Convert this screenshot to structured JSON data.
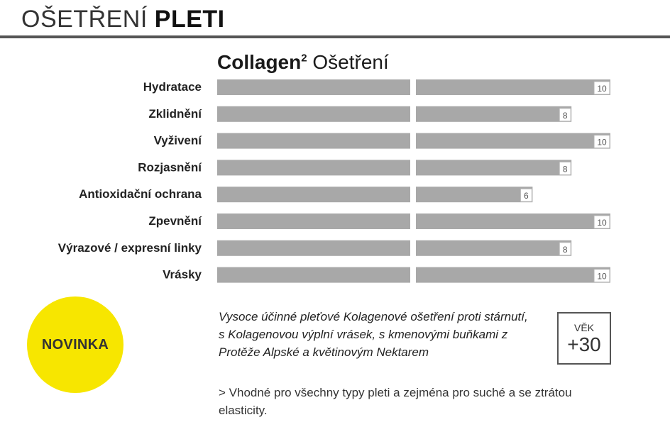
{
  "header": {
    "title_light": "OŠETŘENÍ",
    "title_bold": "PLETI"
  },
  "chart_data": {
    "type": "bar",
    "title_bold": "Collagen",
    "title_sup": "2",
    "title_rest": "Ošetření",
    "categories": [
      "Hydratace",
      "Zklidnění",
      "Vyživení",
      "Rozjasnění",
      "Antioxidační ochrana",
      "Zpevnění",
      "Výrazové / expresní linky",
      "Vrásky"
    ],
    "values": [
      10,
      8,
      10,
      8,
      6,
      10,
      8,
      10
    ],
    "xlim": [
      0,
      10
    ],
    "bar_color": "#a8a8a8",
    "grid": false
  },
  "badge": {
    "label": "NOVINKA",
    "color": "#f7e600"
  },
  "description": "Vysoce účinné pleťové Kolagenové ošetření  proti stárnutí, s Kolagenovou výplní vrásek, s kmenovými buňkami z Protěže Alpské a květinovým Nektarem",
  "age_box": {
    "label": "VĚK",
    "value": "+30"
  },
  "note": "> Vhodné pro všechny typy pleti a zejména pro suché a se ztrátou elasticity."
}
